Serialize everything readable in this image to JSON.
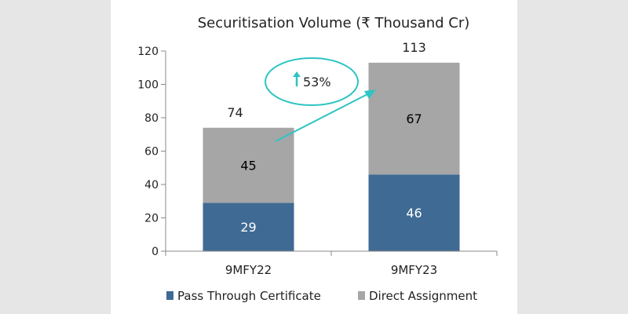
{
  "chart_data": {
    "type": "bar",
    "stacked": true,
    "title": "Securitisation Volume (₹ Thousand Cr)",
    "xlabel": "",
    "ylabel": "",
    "categories": [
      "9MFY22",
      "9MFY23"
    ],
    "series": [
      {
        "name": "Pass Through Certificate",
        "values": [
          29,
          46
        ],
        "color": "#3f6a93",
        "label_color": "#ffffff"
      },
      {
        "name": "Direct Assignment",
        "values": [
          45,
          67
        ],
        "color": "#a6a6a6",
        "label_color": "#000000"
      }
    ],
    "totals": [
      74,
      113
    ],
    "ylim": [
      0,
      120
    ],
    "yticks": [
      "0",
      "20",
      "40",
      "60",
      "80",
      "100",
      "120"
    ],
    "grid": false,
    "legend_position": "bottom",
    "annotation": {
      "text": "53%",
      "arrow_icon": "up-arrow-icon",
      "color": "#2ec4c4"
    }
  }
}
